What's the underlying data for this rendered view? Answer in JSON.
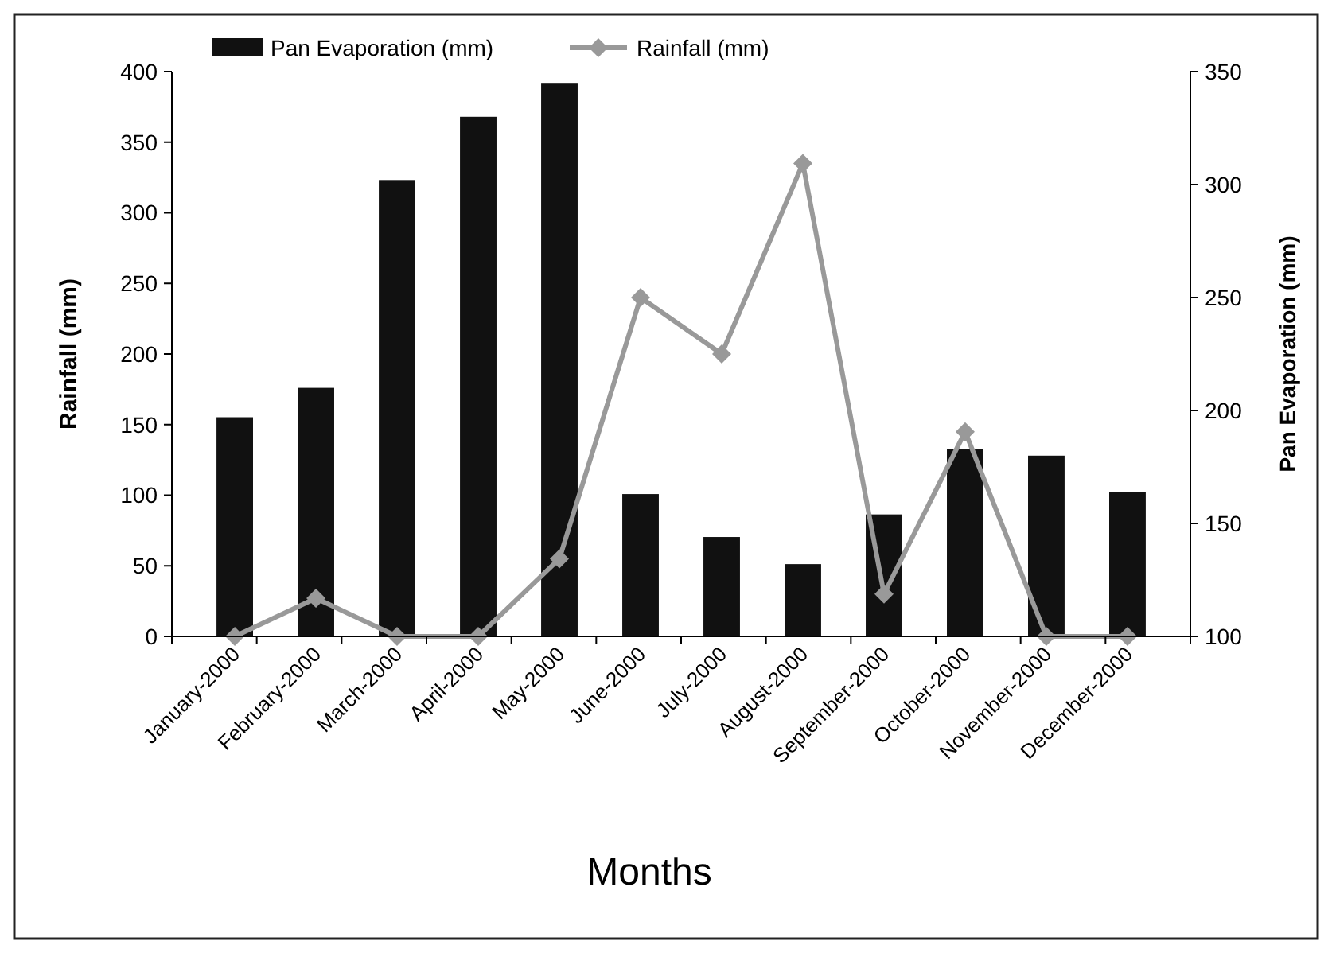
{
  "chart_data": {
    "type": "bar",
    "xlabel": "Months",
    "ylabel": "Rainfall (mm)",
    "y2label": "Pan Evaporation (mm)",
    "categories": [
      "January-2000",
      "February-2000",
      "March-2000",
      "April-2000",
      "May-2000",
      "June-2000",
      "July-2000",
      "August-2000",
      "September-2000",
      "October-2000",
      "November-2000",
      "December-2000"
    ],
    "series": [
      {
        "name": "Pan Evaporation  (mm)",
        "axis": "y2",
        "color": "#111111",
        "values": [
          197,
          210,
          302,
          330,
          345,
          163,
          144,
          132,
          154,
          183,
          180,
          164
        ]
      },
      {
        "name": "Rainfall (mm)",
        "type": "line",
        "color": "#999999",
        "marker": "diamond",
        "values": [
          0,
          27,
          0,
          0,
          55,
          240,
          200,
          335,
          30,
          145,
          0,
          0
        ]
      }
    ],
    "ylim": [
      0,
      400
    ],
    "yticks": [
      0,
      50,
      100,
      150,
      200,
      250,
      300,
      350,
      400
    ],
    "y2lim": [
      100,
      350
    ],
    "y2ticks": [
      100,
      150,
      200,
      250,
      300,
      350
    ],
    "legend": "top",
    "grid": false
  }
}
